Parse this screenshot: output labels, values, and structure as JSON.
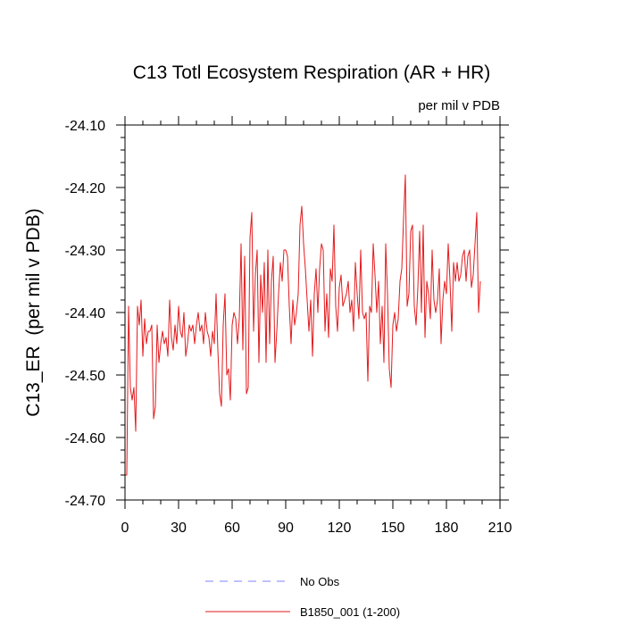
{
  "chart_data": {
    "type": "line",
    "title": "C13 Totl Ecosystem Respiration (AR + HR)",
    "units_label": "per mil v PDB",
    "ylabel": "C13_ER  (per mil v PDB)",
    "xlabel": "",
    "xlim": [
      0,
      210
    ],
    "ylim": [
      -24.7,
      -24.1
    ],
    "x_ticks": [
      0,
      30,
      60,
      90,
      120,
      150,
      180,
      210
    ],
    "x_tick_labels": [
      "0",
      "30",
      "60",
      "90",
      "120",
      "150",
      "180",
      "210"
    ],
    "y_ticks": [
      -24.7,
      -24.6,
      -24.5,
      -24.4,
      -24.3,
      -24.2,
      -24.1
    ],
    "y_tick_labels": [
      "-24.70",
      "-24.60",
      "-24.50",
      "-24.40",
      "-24.30",
      "-24.20",
      "-24.10"
    ],
    "grid": false,
    "legend_position": "bottom",
    "legend": [
      {
        "label": "No Obs",
        "color": "#8080ff",
        "dash": "dashed"
      },
      {
        "label": "B1850_001 (1-200)",
        "color": "#e31a1c",
        "dash": "solid"
      }
    ],
    "series": [
      {
        "name": "B1850_001 (1-200)",
        "color": "#e31a1c",
        "x_start": 0,
        "x_step": 1,
        "values": [
          -24.66,
          -24.66,
          -24.39,
          -24.52,
          -24.54,
          -24.52,
          -24.59,
          -24.39,
          -24.42,
          -24.38,
          -24.47,
          -24.41,
          -24.45,
          -24.43,
          -24.43,
          -24.42,
          -24.57,
          -24.55,
          -24.42,
          -24.48,
          -24.45,
          -24.43,
          -24.45,
          -24.44,
          -24.47,
          -24.38,
          -24.44,
          -24.46,
          -24.42,
          -24.45,
          -24.39,
          -24.43,
          -24.44,
          -24.4,
          -24.47,
          -24.45,
          -24.42,
          -24.43,
          -24.42,
          -24.45,
          -24.42,
          -24.4,
          -24.43,
          -24.42,
          -24.45,
          -24.4,
          -24.43,
          -24.44,
          -24.47,
          -24.43,
          -24.45,
          -24.37,
          -24.46,
          -24.53,
          -24.55,
          -24.42,
          -24.37,
          -24.5,
          -24.49,
          -24.54,
          -24.42,
          -24.4,
          -24.41,
          -24.45,
          -24.41,
          -24.29,
          -24.46,
          -24.31,
          -24.53,
          -24.52,
          -24.28,
          -24.24,
          -24.43,
          -24.34,
          -24.3,
          -24.48,
          -24.34,
          -24.4,
          -24.32,
          -24.48,
          -24.3,
          -24.45,
          -24.35,
          -24.31,
          -24.48,
          -24.43,
          -24.37,
          -24.32,
          -24.35,
          -24.3,
          -24.3,
          -24.31,
          -24.39,
          -24.45,
          -24.38,
          -24.42,
          -24.4,
          -24.37,
          -24.26,
          -24.23,
          -24.29,
          -24.33,
          -24.38,
          -24.43,
          -24.38,
          -24.47,
          -24.37,
          -24.33,
          -24.4,
          -24.33,
          -24.29,
          -24.3,
          -24.43,
          -24.37,
          -24.44,
          -24.33,
          -24.35,
          -24.26,
          -24.39,
          -24.43,
          -24.36,
          -24.34,
          -24.39,
          -24.38,
          -24.37,
          -24.35,
          -24.4,
          -24.38,
          -24.43,
          -24.32,
          -24.37,
          -24.41,
          -24.3,
          -24.4,
          -24.41,
          -24.4,
          -24.51,
          -24.39,
          -24.4,
          -24.29,
          -24.34,
          -24.4,
          -24.35,
          -24.45,
          -24.39,
          -24.48,
          -24.29,
          -24.37,
          -24.49,
          -24.52,
          -24.42,
          -24.4,
          -24.43,
          -24.41,
          -24.35,
          -24.33,
          -24.25,
          -24.18,
          -24.39,
          -24.37,
          -24.27,
          -24.26,
          -24.39,
          -24.42,
          -24.36,
          -24.27,
          -24.4,
          -24.26,
          -24.44,
          -24.35,
          -24.37,
          -24.41,
          -24.3,
          -24.38,
          -24.4,
          -24.38,
          -24.33,
          -24.45,
          -24.38,
          -24.35,
          -24.37,
          -24.29,
          -24.35,
          -24.43,
          -24.32,
          -24.35,
          -24.32,
          -24.35,
          -24.34,
          -24.31,
          -24.3,
          -24.35,
          -24.31,
          -24.3,
          -24.36,
          -24.34,
          -24.29,
          -24.24,
          -24.4,
          -24.35
        ]
      }
    ]
  }
}
